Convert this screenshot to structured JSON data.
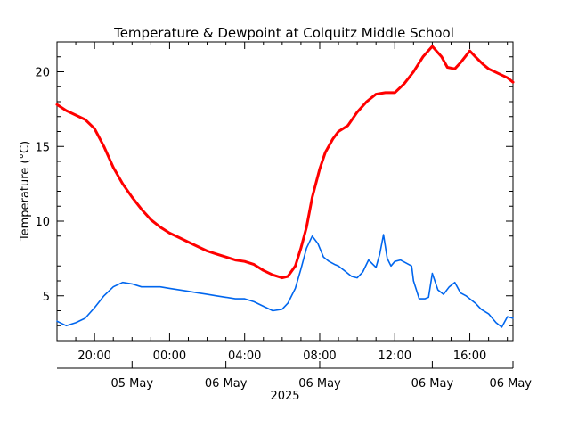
{
  "chart_data": {
    "type": "line",
    "title": "Temperature & Dewpoint at Colquitz Middle School",
    "ylabel": "Temperature (°C)",
    "ylim": [
      2,
      22
    ],
    "yticks": [
      5,
      10,
      15,
      20
    ],
    "x_unit": "hours",
    "xlim": [
      18,
      42.3
    ],
    "time_ticks": [
      {
        "x": 20,
        "label": "20:00"
      },
      {
        "x": 24,
        "label": "00:00"
      },
      {
        "x": 28,
        "label": "04:00"
      },
      {
        "x": 32,
        "label": "08:00"
      },
      {
        "x": 36,
        "label": "12:00"
      },
      {
        "x": 40,
        "label": "16:00"
      }
    ],
    "date_ticks": [
      {
        "x": 22,
        "label": "05 May"
      },
      {
        "x": 27,
        "label": "06 May"
      },
      {
        "x": 32,
        "label": "06 May"
      },
      {
        "x": 38,
        "label": "06 May"
      },
      {
        "x": 42.3,
        "label": "06 May"
      }
    ],
    "year_label": "2025",
    "grid": false,
    "series": [
      {
        "name": "",
        "color": "#ff0000",
        "x": [
          18.0,
          18.5,
          19.0,
          19.5,
          20.0,
          20.5,
          21.0,
          21.5,
          22.0,
          22.5,
          23.0,
          23.5,
          24.0,
          24.5,
          25.0,
          25.5,
          26.0,
          26.5,
          27.0,
          27.5,
          28.0,
          28.5,
          29.0,
          29.5,
          30.0,
          30.3,
          30.7,
          31.0,
          31.3,
          31.6,
          32.0,
          32.3,
          32.7,
          33.0,
          33.5,
          34.0,
          34.5,
          35.0,
          35.5,
          36.0,
          36.5,
          37.0,
          37.5,
          38.0,
          38.5,
          38.8,
          39.2,
          39.5,
          40.0,
          40.3,
          40.7,
          41.0,
          41.5,
          42.0,
          42.3
        ],
        "y": [
          17.8,
          17.4,
          17.1,
          16.8,
          16.2,
          15.0,
          13.6,
          12.5,
          11.6,
          10.8,
          10.1,
          9.6,
          9.2,
          8.9,
          8.6,
          8.3,
          8.0,
          7.8,
          7.6,
          7.4,
          7.3,
          7.1,
          6.7,
          6.4,
          6.2,
          6.3,
          7.0,
          8.2,
          9.6,
          11.6,
          13.5,
          14.6,
          15.5,
          16.0,
          16.4,
          17.3,
          18.0,
          18.5,
          18.6,
          18.6,
          19.2,
          20.0,
          21.0,
          21.7,
          21.0,
          20.3,
          20.2,
          20.6,
          21.4,
          21.0,
          20.5,
          20.2,
          19.9,
          19.6,
          19.3
        ]
      },
      {
        "name": "",
        "color": "#0066ee",
        "x": [
          18.0,
          18.5,
          19.0,
          19.5,
          20.0,
          20.5,
          21.0,
          21.5,
          22.0,
          22.5,
          23.0,
          23.5,
          24.0,
          24.5,
          25.0,
          25.5,
          26.0,
          26.5,
          27.0,
          27.5,
          28.0,
          28.5,
          29.0,
          29.5,
          30.0,
          30.3,
          30.7,
          31.0,
          31.3,
          31.6,
          31.9,
          32.2,
          32.5,
          32.8,
          33.0,
          33.3,
          33.7,
          34.0,
          34.3,
          34.6,
          35.0,
          35.2,
          35.4,
          35.6,
          35.8,
          36.0,
          36.3,
          36.6,
          36.9,
          37.0,
          37.3,
          37.6,
          37.8,
          38.0,
          38.3,
          38.6,
          38.9,
          39.2,
          39.5,
          39.8,
          40.0,
          40.3,
          40.6,
          41.0,
          41.4,
          41.7,
          42.0,
          42.3
        ],
        "y": [
          3.3,
          3.0,
          3.2,
          3.5,
          4.2,
          5.0,
          5.6,
          5.9,
          5.8,
          5.6,
          5.6,
          5.6,
          5.5,
          5.4,
          5.3,
          5.2,
          5.1,
          5.0,
          4.9,
          4.8,
          4.8,
          4.6,
          4.3,
          4.0,
          4.1,
          4.5,
          5.5,
          6.8,
          8.2,
          9.0,
          8.5,
          7.6,
          7.3,
          7.1,
          7.0,
          6.7,
          6.3,
          6.2,
          6.6,
          7.4,
          6.9,
          7.8,
          9.1,
          7.5,
          7.0,
          7.3,
          7.4,
          7.2,
          7.0,
          6.0,
          4.8,
          4.8,
          4.9,
          6.5,
          5.4,
          5.1,
          5.6,
          5.9,
          5.2,
          5.0,
          4.8,
          4.5,
          4.1,
          3.8,
          3.2,
          2.9,
          3.6,
          3.5
        ]
      }
    ]
  }
}
